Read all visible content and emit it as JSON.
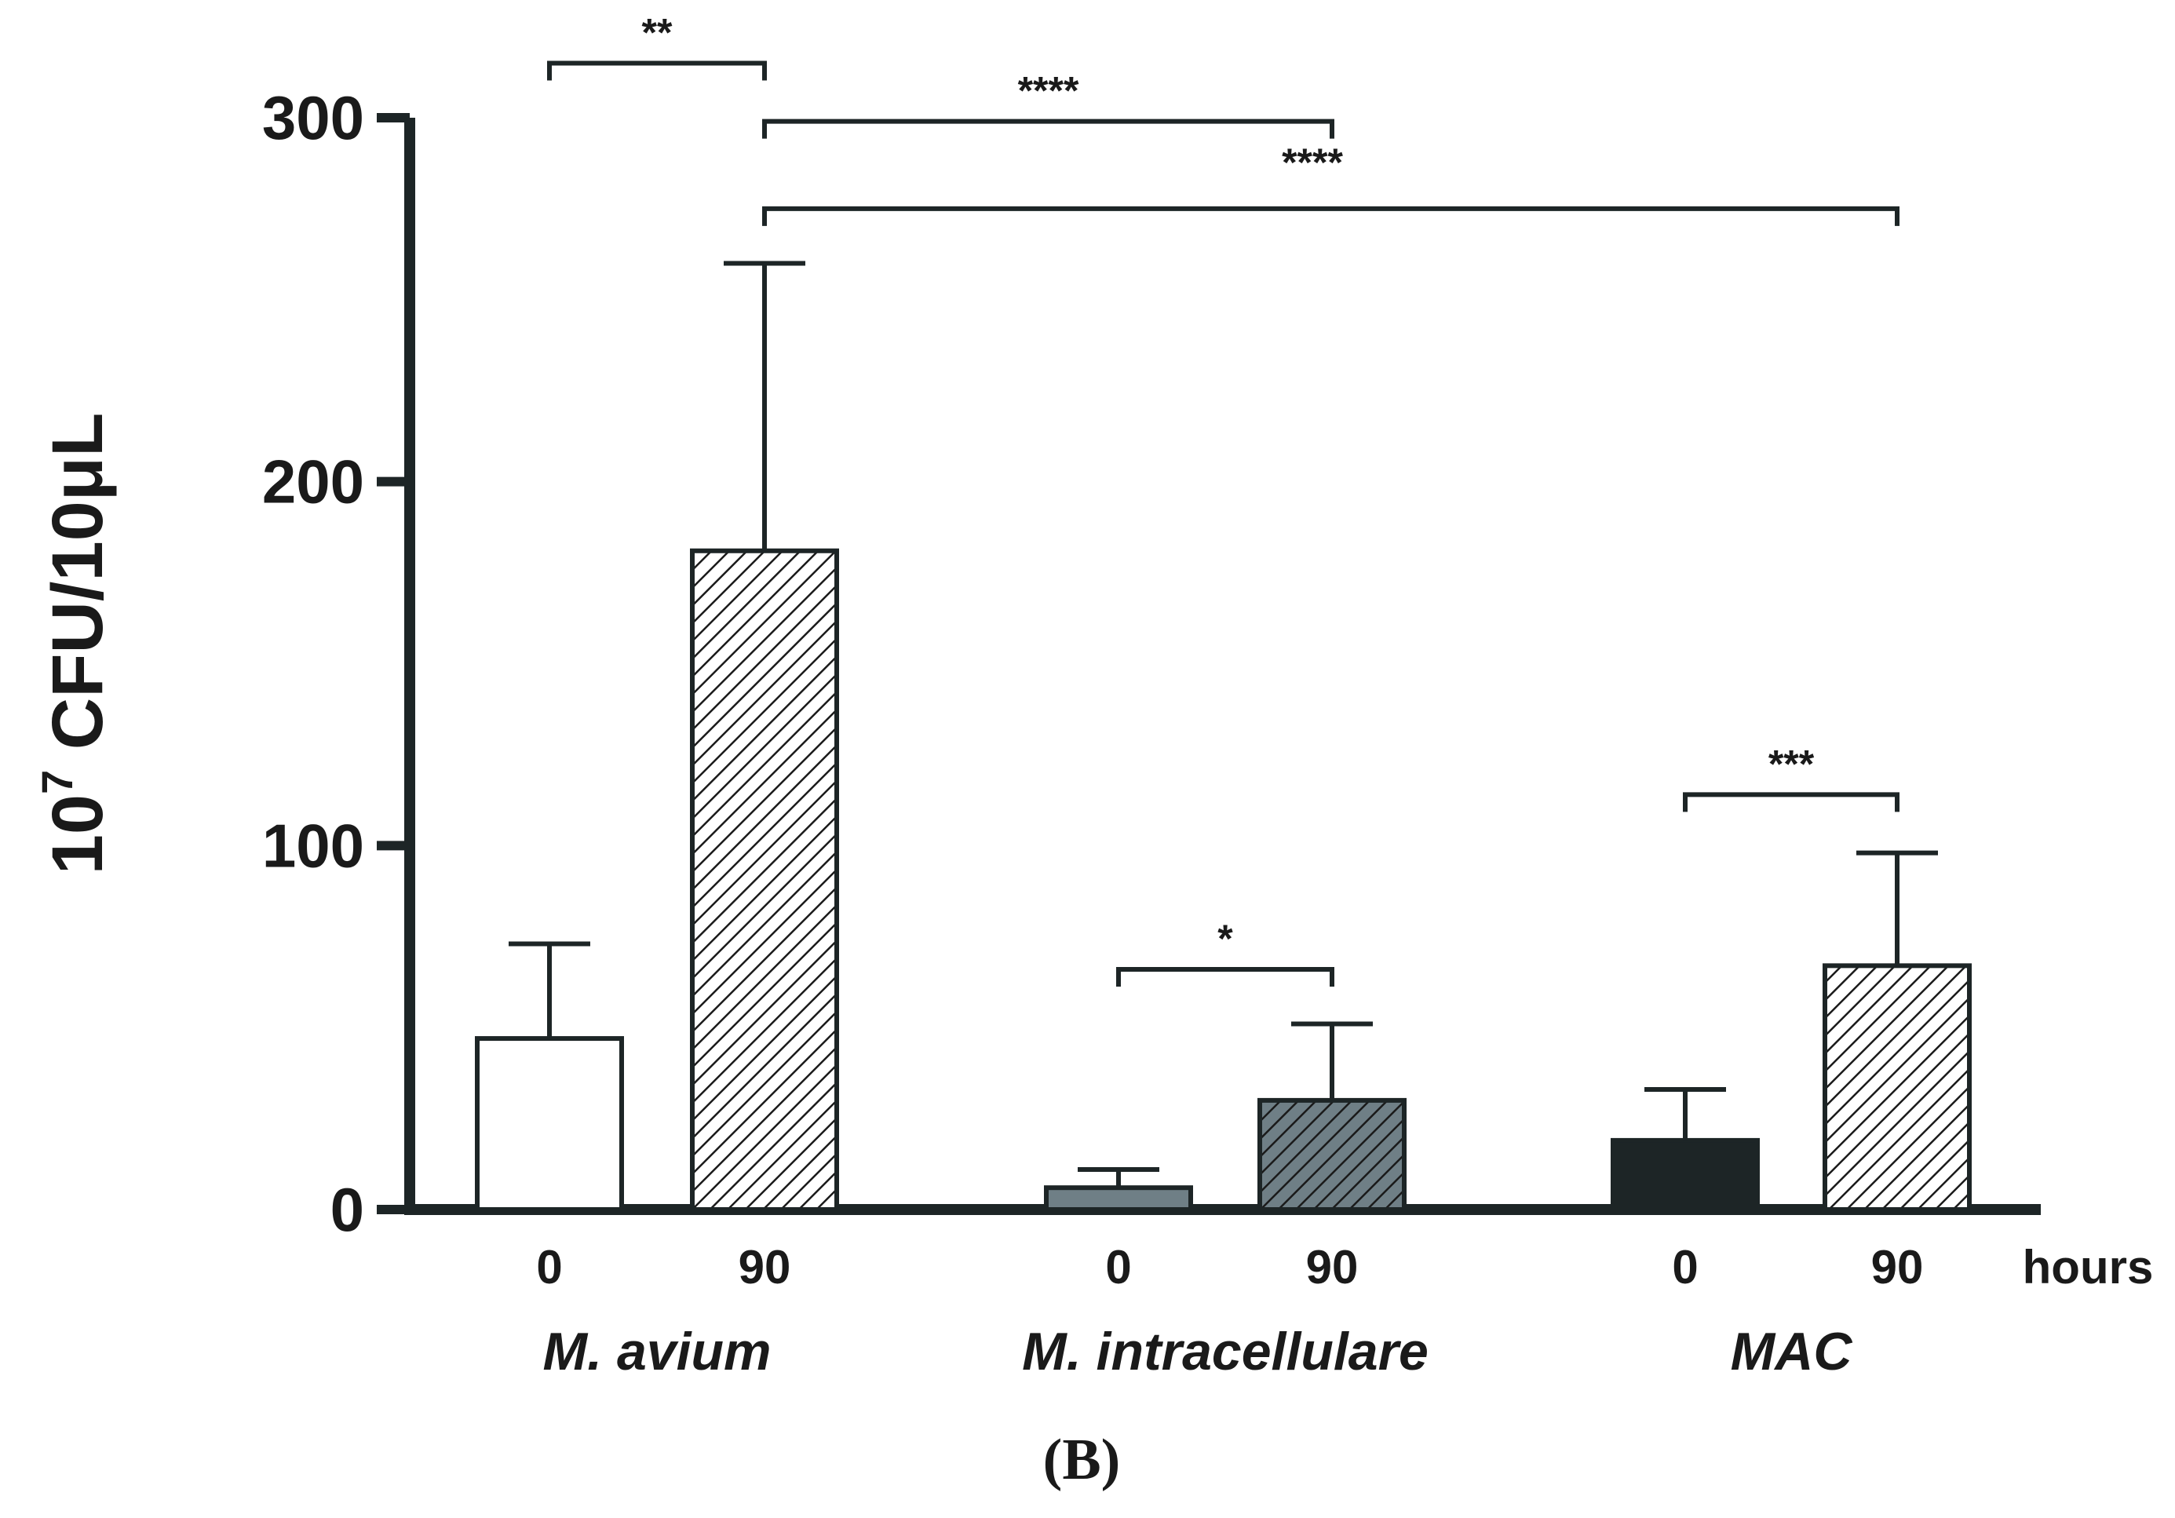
{
  "chart_data": {
    "type": "bar",
    "ylabel_base": "10",
    "ylabel_exp": "7",
    "ylabel_rest": " CFU/10μL",
    "ylim": [
      0,
      300
    ],
    "yticks": [
      "0",
      "100",
      "200",
      "300"
    ],
    "x_unit_label": "hours",
    "panel_label": "(B)",
    "groups": [
      {
        "name": "M. avium",
        "bars": [
          {
            "time": "0",
            "value": 47,
            "error": 26,
            "style": "open",
            "fill": "#ffffff"
          },
          {
            "time": "90",
            "value": 181,
            "error": 79,
            "style": "hatched",
            "fill": "#ffffff"
          }
        ]
      },
      {
        "name": "M. intracellulare",
        "bars": [
          {
            "time": "0",
            "value": 6,
            "error": 5,
            "style": "solid",
            "fill": "#6f7f86"
          },
          {
            "time": "90",
            "value": 30,
            "error": 21,
            "style": "hatched",
            "fill": "#6f7f86"
          }
        ]
      },
      {
        "name": "MAC",
        "bars": [
          {
            "time": "0",
            "value": 19,
            "error": 14,
            "style": "solid",
            "fill": "#1d2526"
          },
          {
            "time": "90",
            "value": 67,
            "error": 31,
            "style": "hatched",
            "fill": "#ffffff"
          }
        ]
      }
    ],
    "significance": [
      {
        "label": "**",
        "from": [
          0,
          0
        ],
        "to": [
          0,
          1
        ],
        "level": 315
      },
      {
        "label": "****",
        "from": [
          0,
          1
        ],
        "to": [
          1,
          1
        ],
        "level": 299
      },
      {
        "label": "****",
        "from": [
          0,
          1
        ],
        "to": [
          2,
          1
        ],
        "level": 275
      },
      {
        "label": "*",
        "from": [
          1,
          0
        ],
        "to": [
          1,
          1
        ],
        "level": 66
      },
      {
        "label": "***",
        "from": [
          2,
          0
        ],
        "to": [
          2,
          1
        ],
        "level": 114
      }
    ]
  }
}
